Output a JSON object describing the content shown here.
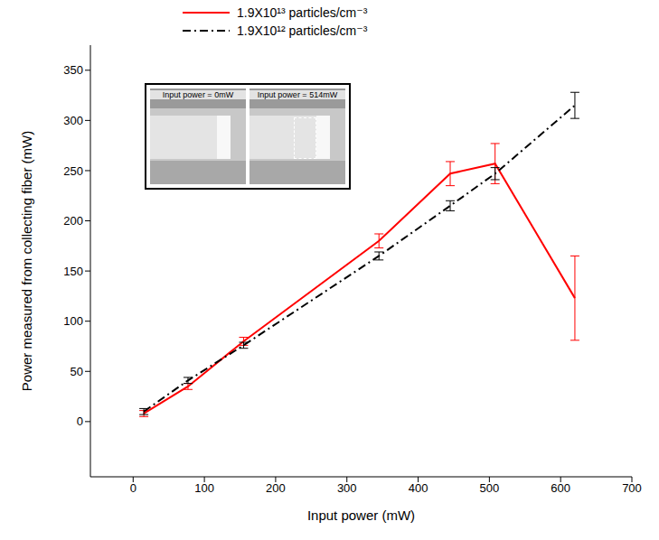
{
  "chart_data": {
    "type": "line",
    "x_label": "Input power (mW)",
    "y_label": "Power measured from collecting fiber (mW)",
    "x": [
      15,
      77,
      155,
      345,
      445,
      508,
      620
    ],
    "series": [
      {
        "name": "1.9X10¹³ particles/cm⁻³",
        "color": "#ff0000",
        "line_style": "solid",
        "values": [
          8,
          35,
          80,
          180,
          247,
          257,
          123
        ],
        "errors": [
          3,
          3,
          4,
          7,
          12,
          20,
          42
        ]
      },
      {
        "name": "1.9X10¹² particles/cm⁻³",
        "color": "#000000",
        "line_style": "dashdot",
        "values": [
          10,
          41,
          76,
          165,
          215,
          247,
          315
        ],
        "errors": [
          3,
          3,
          3,
          4,
          5,
          6,
          13
        ]
      }
    ],
    "xlim": [
      -60,
      700
    ],
    "xticks": [
      0,
      100,
      200,
      300,
      400,
      500,
      600,
      700
    ],
    "ylim": [
      -55,
      375
    ],
    "yticks": [
      0,
      50,
      100,
      150,
      200,
      250,
      300,
      350
    ],
    "grid": false,
    "legend": "top",
    "inset": {
      "panels": [
        {
          "label": "Input power = 0mW"
        },
        {
          "label": "Input power = 514mW"
        }
      ]
    }
  }
}
